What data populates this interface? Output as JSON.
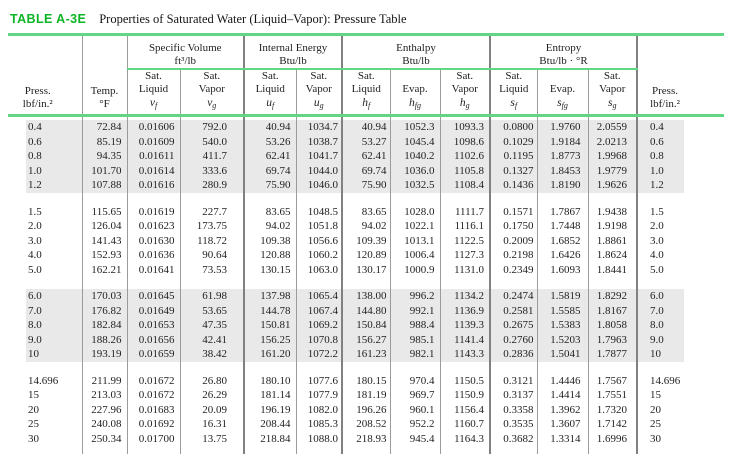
{
  "colors": {
    "accent_green": "#0cb525",
    "rule_green": "#63d683",
    "rule_gray": "#9b9b9b",
    "row_shade": "#e9e9e9"
  },
  "title": {
    "label": "TABLE A-3E",
    "caption": "Properties of Saturated Water (Liquid–Vapor): Pressure Table"
  },
  "headers": {
    "press_left": {
      "line1": "Press.",
      "line2": "lbf/in.²"
    },
    "temp": {
      "line1": "Temp.",
      "line2": "°F"
    },
    "press_right": {
      "line1": "Press.",
      "line2": "lbf/in.²"
    }
  },
  "groups": [
    {
      "title": "Specific Volume",
      "unit": "ft³/lb",
      "cols": [
        {
          "l1": "Sat.",
          "l2": "Liquid",
          "sym": "v",
          "sub": "f"
        },
        {
          "l1": "Sat.",
          "l2": "Vapor",
          "sym": "v",
          "sub": "g"
        }
      ]
    },
    {
      "title": "Internal Energy",
      "unit": "Btu/lb",
      "cols": [
        {
          "l1": "Sat.",
          "l2": "Liquid",
          "sym": "u",
          "sub": "f"
        },
        {
          "l1": "Sat.",
          "l2": "Vapor",
          "sym": "u",
          "sub": "g"
        }
      ]
    },
    {
      "title": "Enthalpy",
      "unit": "Btu/lb",
      "cols": [
        {
          "l1": "Sat.",
          "l2": "Liquid",
          "sym": "h",
          "sub": "f"
        },
        {
          "l1": "",
          "l2": "Evap.",
          "sym": "h",
          "sub": "fg"
        },
        {
          "l1": "Sat.",
          "l2": "Vapor",
          "sym": "h",
          "sub": "g"
        }
      ]
    },
    {
      "title": "Entropy",
      "unit": "Btu/lb · °R",
      "cols": [
        {
          "l1": "Sat.",
          "l2": "Liquid",
          "sym": "s",
          "sub": "f"
        },
        {
          "l1": "",
          "l2": "Evap.",
          "sym": "s",
          "sub": "fg"
        },
        {
          "l1": "Sat.",
          "l2": "Vapor",
          "sym": "s",
          "sub": "g"
        }
      ]
    }
  ],
  "col_keys": [
    "press",
    "temp",
    "vf",
    "vg",
    "uf",
    "ug",
    "hf",
    "hfg",
    "hg",
    "sf",
    "sfg",
    "sg",
    "press-right"
  ],
  "blocks": [
    {
      "shaded": true,
      "rows": [
        [
          "0.4",
          "72.84",
          "0.01606",
          "792.0",
          "40.94",
          "1034.7",
          "40.94",
          "1052.3",
          "1093.3",
          "0.0800",
          "1.9760",
          "2.0559",
          "0.4"
        ],
        [
          "0.6",
          "85.19",
          "0.01609",
          "540.0",
          "53.26",
          "1038.7",
          "53.27",
          "1045.4",
          "1098.6",
          "0.1029",
          "1.9184",
          "2.0213",
          "0.6"
        ],
        [
          "0.8",
          "94.35",
          "0.01611",
          "411.7",
          "62.41",
          "1041.7",
          "62.41",
          "1040.2",
          "1102.6",
          "0.1195",
          "1.8773",
          "1.9968",
          "0.8"
        ],
        [
          "1.0",
          "101.70",
          "0.01614",
          "333.6",
          "69.74",
          "1044.0",
          "69.74",
          "1036.0",
          "1105.8",
          "0.1327",
          "1.8453",
          "1.9779",
          "1.0"
        ],
        [
          "1.2",
          "107.88",
          "0.01616",
          "280.9",
          "75.90",
          "1046.0",
          "75.90",
          "1032.5",
          "1108.4",
          "0.1436",
          "1.8190",
          "1.9626",
          "1.2"
        ]
      ]
    },
    {
      "shaded": false,
      "rows": [
        [
          "1.5",
          "115.65",
          "0.01619",
          "227.7",
          "83.65",
          "1048.5",
          "83.65",
          "1028.0",
          "1111.7",
          "0.1571",
          "1.7867",
          "1.9438",
          "1.5"
        ],
        [
          "2.0",
          "126.04",
          "0.01623",
          "173.75",
          "94.02",
          "1051.8",
          "94.02",
          "1022.1",
          "1116.1",
          "0.1750",
          "1.7448",
          "1.9198",
          "2.0"
        ],
        [
          "3.0",
          "141.43",
          "0.01630",
          "118.72",
          "109.38",
          "1056.6",
          "109.39",
          "1013.1",
          "1122.5",
          "0.2009",
          "1.6852",
          "1.8861",
          "3.0"
        ],
        [
          "4.0",
          "152.93",
          "0.01636",
          "90.64",
          "120.88",
          "1060.2",
          "120.89",
          "1006.4",
          "1127.3",
          "0.2198",
          "1.6426",
          "1.8624",
          "4.0"
        ],
        [
          "5.0",
          "162.21",
          "0.01641",
          "73.53",
          "130.15",
          "1063.0",
          "130.17",
          "1000.9",
          "1131.0",
          "0.2349",
          "1.6093",
          "1.8441",
          "5.0"
        ]
      ]
    },
    {
      "shaded": true,
      "rows": [
        [
          "6.0",
          "170.03",
          "0.01645",
          "61.98",
          "137.98",
          "1065.4",
          "138.00",
          "996.2",
          "1134.2",
          "0.2474",
          "1.5819",
          "1.8292",
          "6.0"
        ],
        [
          "7.0",
          "176.82",
          "0.01649",
          "53.65",
          "144.78",
          "1067.4",
          "144.80",
          "992.1",
          "1136.9",
          "0.2581",
          "1.5585",
          "1.8167",
          "7.0"
        ],
        [
          "8.0",
          "182.84",
          "0.01653",
          "47.35",
          "150.81",
          "1069.2",
          "150.84",
          "988.4",
          "1139.3",
          "0.2675",
          "1.5383",
          "1.8058",
          "8.0"
        ],
        [
          "9.0",
          "188.26",
          "0.01656",
          "42.41",
          "156.25",
          "1070.8",
          "156.27",
          "985.1",
          "1141.4",
          "0.2760",
          "1.5203",
          "1.7963",
          "9.0"
        ],
        [
          "10",
          "193.19",
          "0.01659",
          "38.42",
          "161.20",
          "1072.2",
          "161.23",
          "982.1",
          "1143.3",
          "0.2836",
          "1.5041",
          "1.7877",
          "10"
        ]
      ]
    },
    {
      "shaded": false,
      "rows": [
        [
          "14.696",
          "211.99",
          "0.01672",
          "26.80",
          "180.10",
          "1077.6",
          "180.15",
          "970.4",
          "1150.5",
          "0.3121",
          "1.4446",
          "1.7567",
          "14.696"
        ],
        [
          "15",
          "213.03",
          "0.01672",
          "26.29",
          "181.14",
          "1077.9",
          "181.19",
          "969.7",
          "1150.9",
          "0.3137",
          "1.4414",
          "1.7551",
          "15"
        ],
        [
          "20",
          "227.96",
          "0.01683",
          "20.09",
          "196.19",
          "1082.0",
          "196.26",
          "960.1",
          "1156.4",
          "0.3358",
          "1.3962",
          "1.7320",
          "20"
        ],
        [
          "25",
          "240.08",
          "0.01692",
          "16.31",
          "208.44",
          "1085.3",
          "208.52",
          "952.2",
          "1160.7",
          "0.3535",
          "1.3607",
          "1.7142",
          "25"
        ],
        [
          "30",
          "250.34",
          "0.01700",
          "13.75",
          "218.84",
          "1088.0",
          "218.93",
          "945.4",
          "1164.3",
          "0.3682",
          "1.3314",
          "1.6996",
          "30"
        ]
      ]
    }
  ]
}
